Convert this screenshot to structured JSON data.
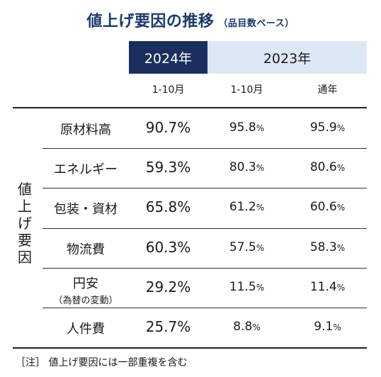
{
  "title": "値上げ要因の推移",
  "subtitle": "（品目数ベース）",
  "header": {
    "y2024": "2024年",
    "y2023": "2023年",
    "sub": [
      "1-10月",
      "1-10月",
      "通年"
    ]
  },
  "row_group_label": "値上げ要因",
  "note": "［注］ 値上げ要因には一部重複を含む",
  "chart_data": {
    "type": "table",
    "columns": [
      "2024年 1-10月",
      "2023年 1-10月",
      "2023年 通年"
    ],
    "rows": [
      {
        "label": "原材料高",
        "sublabel": "",
        "values": [
          "90.7",
          "95.8",
          "95.9"
        ]
      },
      {
        "label": "エネルギー",
        "sublabel": "",
        "values": [
          "59.3",
          "80.3",
          "80.6"
        ]
      },
      {
        "label": "包装・資材",
        "sublabel": "",
        "values": [
          "65.8",
          "61.2",
          "60.6"
        ]
      },
      {
        "label": "物流費",
        "sublabel": "",
        "values": [
          "60.3",
          "57.5",
          "58.3"
        ]
      },
      {
        "label": "円安",
        "sublabel": "（為替の変動）",
        "values": [
          "29.2",
          "11.5",
          "11.4"
        ]
      },
      {
        "label": "人件費",
        "sublabel": "",
        "values": [
          "25.7",
          "8.8",
          "9.1"
        ]
      }
    ],
    "unit": "%"
  }
}
